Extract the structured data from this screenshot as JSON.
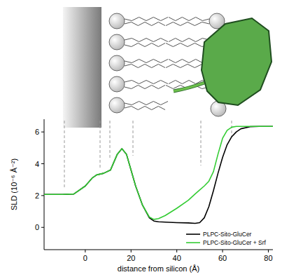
{
  "chart_data": {
    "type": "line",
    "xlabel": "distance from silicon (Å)",
    "ylabel": "SLD (10⁻⁶ Å⁻²)",
    "x": [
      -18,
      -10,
      -5,
      0,
      3,
      5,
      8,
      11,
      14,
      16,
      18,
      20,
      22,
      25,
      28,
      30,
      32,
      35,
      40,
      45,
      48,
      50,
      52,
      54,
      56,
      58,
      60,
      62,
      64,
      66,
      68,
      72,
      76,
      82
    ],
    "series": [
      {
        "name": "PLPC-Sito-GluCer",
        "color": "#000000",
        "values": [
          2.07,
          2.07,
          2.1,
          2.6,
          3.1,
          3.3,
          3.4,
          3.6,
          4.6,
          4.95,
          4.6,
          3.6,
          2.6,
          1.4,
          0.6,
          0.4,
          0.35,
          0.33,
          0.3,
          0.28,
          0.25,
          0.3,
          0.6,
          1.3,
          2.3,
          3.4,
          4.4,
          5.2,
          5.7,
          6.0,
          6.2,
          6.33,
          6.35,
          6.35
        ]
      },
      {
        "name": "PLPC-Sito-GluCer + Srf",
        "color": "#33cc33",
        "values": [
          2.07,
          2.07,
          2.1,
          2.6,
          3.1,
          3.3,
          3.4,
          3.6,
          4.6,
          4.95,
          4.6,
          3.6,
          2.6,
          1.4,
          0.65,
          0.5,
          0.55,
          0.75,
          1.2,
          1.7,
          2.1,
          2.35,
          2.6,
          2.9,
          3.5,
          4.6,
          5.6,
          6.1,
          6.3,
          6.35,
          6.35,
          6.35,
          6.35,
          6.35
        ]
      }
    ],
    "xlim": [
      -18,
      82
    ],
    "xticks": [
      0,
      20,
      40,
      60,
      80
    ],
    "ylim": [
      -1.4,
      6.8
    ],
    "yticks": [
      0,
      2,
      4,
      6
    ],
    "legend": "lower right"
  }
}
